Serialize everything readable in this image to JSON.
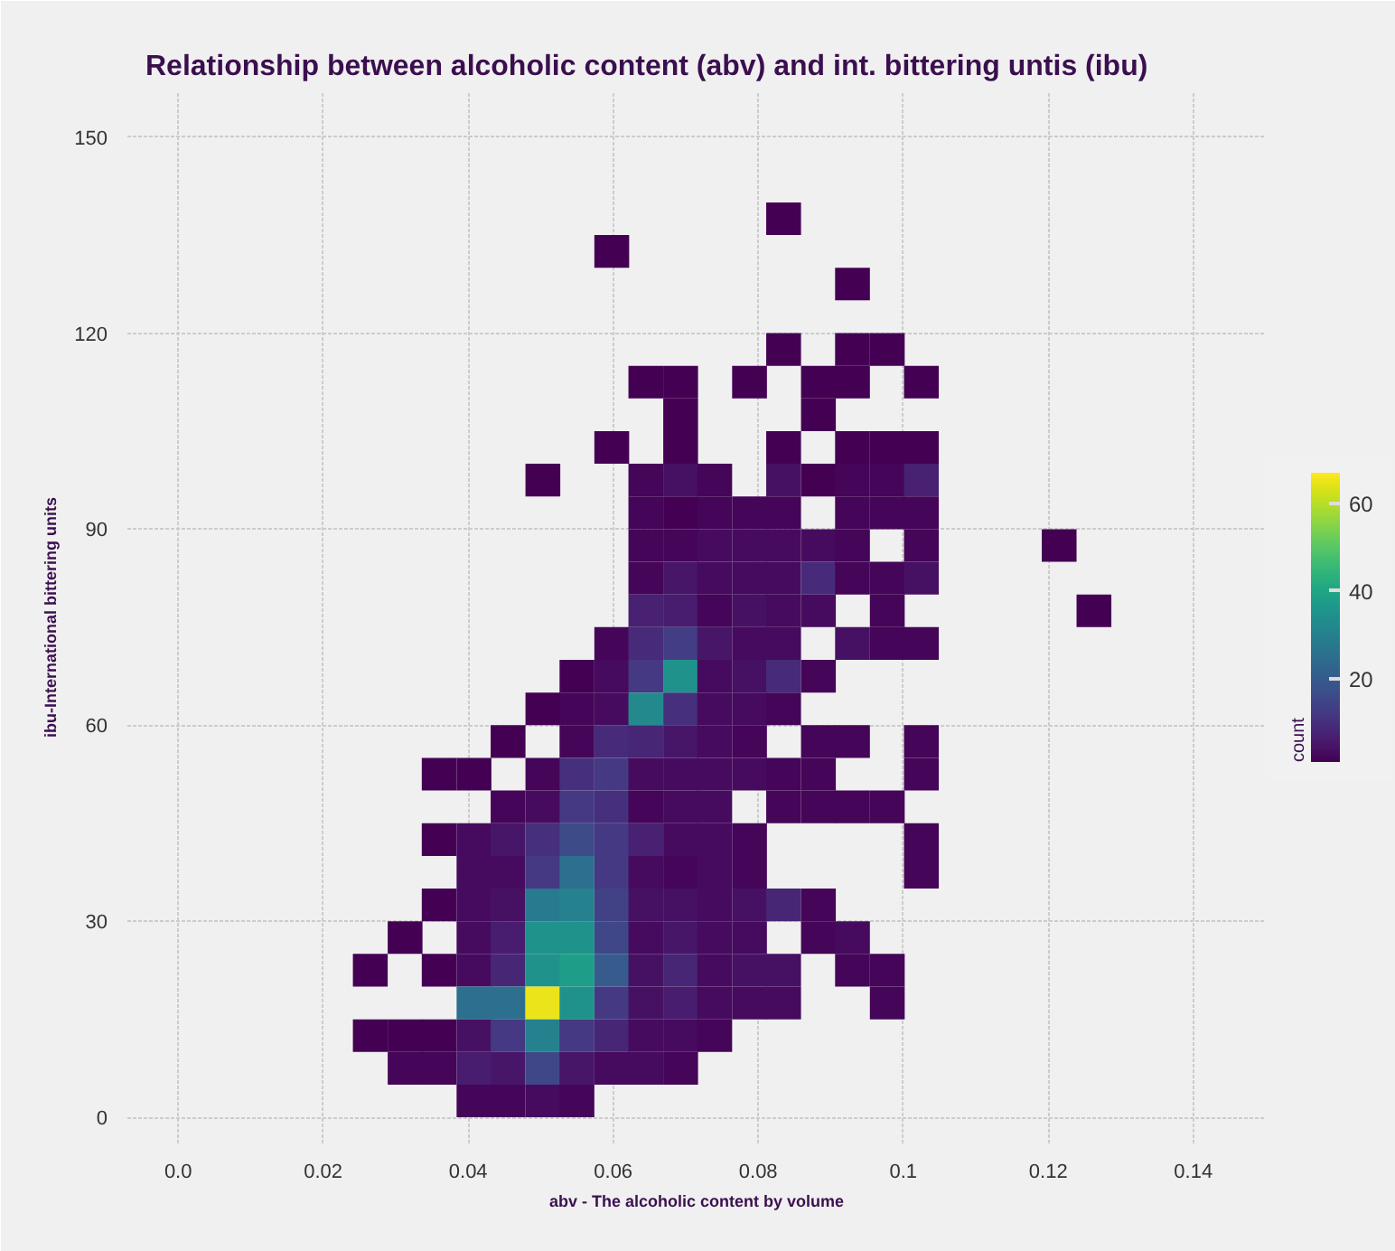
{
  "chart_data": {
    "type": "heatmap",
    "title": "Relationship between alcoholic content (abv) and int. bittering untis (ibu)",
    "xlabel": "abv - The alcoholic content by volume",
    "ylabel": "ibu-International bittering units",
    "clabel": "count",
    "x": [
      0.0265,
      0.0313,
      0.036,
      0.0408,
      0.0455,
      0.0503,
      0.055,
      0.0598,
      0.0645,
      0.0693,
      0.074,
      0.0788,
      0.0835,
      0.0883,
      0.093,
      0.0978,
      0.1025,
      0.1073,
      0.112,
      0.1168,
      0.1215,
      0.1263
    ],
    "y": [
      137.5,
      132.5,
      127.5,
      117.5,
      112.5,
      107.5,
      102.5,
      97.5,
      92.5,
      87.5,
      82.5,
      77.5,
      72.5,
      67.5,
      62.5,
      57.5,
      52.5,
      47.5,
      42.5,
      37.5,
      32.5,
      27.5,
      22.5,
      17.5,
      12.5,
      7.5,
      2.5
    ],
    "cells": [
      [
        null,
        null,
        null,
        null,
        null,
        null,
        null,
        null,
        null,
        null,
        null,
        null,
        1,
        null,
        null,
        null,
        null,
        null,
        null,
        null,
        null,
        null
      ],
      [
        null,
        null,
        null,
        null,
        null,
        null,
        null,
        1,
        null,
        null,
        null,
        null,
        null,
        null,
        null,
        null,
        null,
        null,
        null,
        null,
        null,
        null
      ],
      [
        null,
        null,
        null,
        null,
        null,
        null,
        null,
        null,
        null,
        null,
        null,
        null,
        null,
        null,
        1,
        null,
        null,
        null,
        null,
        null,
        null,
        null
      ],
      [
        null,
        null,
        null,
        null,
        null,
        null,
        null,
        null,
        null,
        null,
        null,
        null,
        1,
        null,
        1,
        1,
        null,
        null,
        null,
        null,
        null,
        null
      ],
      [
        null,
        null,
        null,
        null,
        null,
        null,
        null,
        null,
        1,
        1,
        null,
        1,
        null,
        1,
        1,
        null,
        1,
        null,
        null,
        null,
        null,
        null
      ],
      [
        null,
        null,
        null,
        null,
        null,
        null,
        null,
        null,
        null,
        1,
        null,
        null,
        null,
        1,
        null,
        null,
        null,
        null,
        null,
        null,
        null,
        null
      ],
      [
        null,
        null,
        null,
        null,
        null,
        null,
        null,
        1,
        null,
        1,
        null,
        null,
        1,
        null,
        1,
        1,
        1,
        null,
        null,
        null,
        null,
        null
      ],
      [
        null,
        null,
        null,
        null,
        null,
        1,
        null,
        null,
        2,
        4,
        2,
        null,
        4,
        1,
        2,
        2,
        7,
        null,
        null,
        null,
        null,
        null
      ],
      [
        null,
        null,
        null,
        null,
        null,
        null,
        null,
        null,
        2,
        1,
        2,
        2,
        2,
        null,
        2,
        2,
        2,
        null,
        null,
        null,
        null,
        null
      ],
      [
        null,
        null,
        null,
        null,
        null,
        null,
        null,
        null,
        2,
        2,
        3,
        3,
        3,
        3,
        2,
        null,
        2,
        null,
        null,
        null,
        1,
        null
      ],
      [
        null,
        null,
        null,
        null,
        null,
        null,
        null,
        null,
        2,
        5,
        3,
        3,
        3,
        9,
        2,
        2,
        4,
        null,
        null,
        null,
        null,
        null
      ],
      [
        null,
        null,
        null,
        null,
        null,
        null,
        null,
        null,
        7,
        6,
        2,
        4,
        3,
        3,
        null,
        2,
        null,
        null,
        null,
        null,
        null,
        1
      ],
      [
        null,
        null,
        null,
        null,
        null,
        null,
        null,
        2,
        9,
        13,
        5,
        3,
        3,
        null,
        4,
        2,
        2,
        null,
        null,
        null,
        null,
        null
      ],
      [
        null,
        null,
        null,
        null,
        null,
        null,
        1,
        3,
        12,
        35,
        3,
        4,
        9,
        2,
        null,
        null,
        null,
        null,
        null,
        null,
        null,
        null
      ],
      [
        null,
        null,
        null,
        null,
        null,
        1,
        2,
        3,
        32,
        10,
        3,
        3,
        2,
        null,
        null,
        null,
        null,
        null,
        null,
        null,
        null,
        null
      ],
      [
        null,
        null,
        null,
        null,
        1,
        null,
        2,
        9,
        8,
        5,
        3,
        2,
        null,
        2,
        2,
        null,
        2,
        null,
        null,
        null,
        null,
        null
      ],
      [
        null,
        null,
        1,
        1,
        null,
        2,
        10,
        12,
        3,
        3,
        3,
        3,
        2,
        2,
        null,
        null,
        2,
        null,
        null,
        null,
        null,
        null
      ],
      [
        null,
        null,
        null,
        null,
        2,
        3,
        12,
        10,
        2,
        3,
        3,
        null,
        2,
        2,
        2,
        2,
        null,
        null,
        null,
        null,
        null,
        null
      ],
      [
        null,
        null,
        1,
        3,
        5,
        10,
        16,
        12,
        7,
        3,
        3,
        2,
        null,
        null,
        null,
        null,
        2,
        null,
        null,
        null,
        null,
        null
      ],
      [
        null,
        null,
        null,
        3,
        3,
        12,
        25,
        12,
        3,
        2,
        3,
        2,
        null,
        null,
        null,
        null,
        2,
        null,
        null,
        null,
        null,
        null
      ],
      [
        null,
        null,
        1,
        3,
        4,
        28,
        30,
        14,
        4,
        4,
        3,
        4,
        8,
        2,
        null,
        null,
        null,
        null,
        null,
        null,
        null,
        null
      ],
      [
        null,
        1,
        null,
        3,
        6,
        35,
        35,
        15,
        3,
        5,
        3,
        3,
        null,
        2,
        3,
        null,
        null,
        null,
        null,
        null,
        null,
        null
      ],
      [
        1,
        null,
        1,
        3,
        8,
        35,
        38,
        20,
        4,
        8,
        3,
        4,
        4,
        null,
        2,
        2,
        null,
        null,
        null,
        null,
        null,
        null
      ],
      [
        null,
        null,
        null,
        25,
        25,
        65,
        35,
        12,
        4,
        6,
        3,
        3,
        3,
        null,
        null,
        2,
        null,
        null,
        null,
        null,
        null,
        null
      ],
      [
        1,
        1,
        1,
        4,
        12,
        30,
        12,
        8,
        3,
        3,
        2,
        null,
        null,
        null,
        null,
        null,
        null,
        null,
        null,
        null,
        null,
        null
      ],
      [
        null,
        2,
        2,
        6,
        5,
        15,
        5,
        3,
        3,
        2,
        null,
        null,
        null,
        null,
        null,
        null,
        null,
        null,
        null,
        null,
        null,
        null
      ],
      [
        null,
        null,
        null,
        2,
        2,
        3,
        2,
        null,
        null,
        null,
        null,
        null,
        null,
        null,
        null,
        null,
        null,
        null,
        null,
        null,
        null,
        null
      ]
    ],
    "clim": [
      1,
      67
    ],
    "cticks": [
      20,
      40,
      60
    ],
    "xlim": [
      -0.007,
      0.15
    ],
    "ylim": [
      -4,
      157
    ],
    "xticks": [
      {
        "value": 0,
        "label": "0.0"
      },
      0.02,
      0.04,
      0.06,
      0.08,
      0.1,
      0.12,
      0.14
    ],
    "yticks": [
      0,
      30,
      60,
      90,
      120,
      150
    ],
    "grid": true
  }
}
